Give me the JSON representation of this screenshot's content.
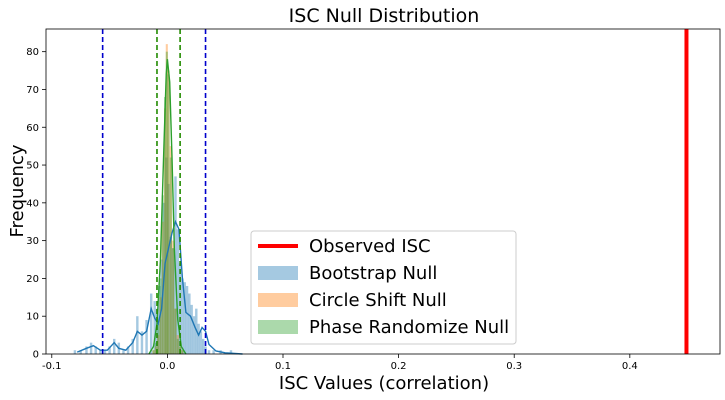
{
  "chart_data": {
    "type": "histogram",
    "title": "ISC Null Distribution",
    "xlabel": "ISC Values (correlation)",
    "ylabel": "Frequency",
    "xlim": [
      -0.105,
      0.478
    ],
    "ylim": [
      0,
      86
    ],
    "x_ticks": [
      -0.1,
      0.0,
      0.1,
      0.2,
      0.3,
      0.4
    ],
    "x_tick_labels": [
      "-0.1",
      "0.0",
      "0.1",
      "0.2",
      "0.3",
      "0.4"
    ],
    "y_ticks": [
      0,
      10,
      20,
      30,
      40,
      50,
      60,
      70,
      80
    ],
    "y_tick_labels": [
      "0",
      "10",
      "20",
      "30",
      "40",
      "50",
      "60",
      "70",
      "80"
    ],
    "grid": false,
    "legend_position": "lower-right",
    "observed": {
      "name": "Observed ISC",
      "x": 0.449,
      "color": "#ff0000"
    },
    "series": [
      {
        "name": "Bootstrap Null",
        "color": "#1f77b4",
        "bin_width": 0.0021,
        "bins": [
          [
            -0.08,
            1
          ],
          [
            -0.075,
            1
          ],
          [
            -0.07,
            2
          ],
          [
            -0.066,
            3
          ],
          [
            -0.062,
            2
          ],
          [
            -0.058,
            1
          ],
          [
            -0.054,
            1
          ],
          [
            -0.05,
            2
          ],
          [
            -0.046,
            4
          ],
          [
            -0.042,
            3
          ],
          [
            -0.038,
            1
          ],
          [
            -0.034,
            2
          ],
          [
            -0.03,
            4
          ],
          [
            -0.026,
            10
          ],
          [
            -0.022,
            6
          ],
          [
            -0.018,
            9
          ],
          [
            -0.014,
            16
          ],
          [
            -0.011,
            14
          ],
          [
            -0.009,
            12
          ],
          [
            -0.007,
            18
          ],
          [
            -0.005,
            25
          ],
          [
            -0.003,
            40
          ],
          [
            -0.001,
            52
          ],
          [
            0.001,
            45
          ],
          [
            0.003,
            31
          ],
          [
            0.005,
            28
          ],
          [
            0.007,
            47
          ],
          [
            0.009,
            33
          ],
          [
            0.011,
            24
          ],
          [
            0.013,
            20
          ],
          [
            0.015,
            19
          ],
          [
            0.017,
            18
          ],
          [
            0.019,
            16
          ],
          [
            0.021,
            13
          ],
          [
            0.023,
            10
          ],
          [
            0.025,
            12
          ],
          [
            0.027,
            8
          ],
          [
            0.029,
            6
          ],
          [
            0.031,
            4
          ],
          [
            0.033,
            2
          ],
          [
            0.036,
            1
          ],
          [
            0.04,
            1
          ],
          [
            0.046,
            1
          ],
          [
            0.055,
            1
          ]
        ],
        "kde": [
          [
            -0.078,
            0.5
          ],
          [
            -0.07,
            1.5
          ],
          [
            -0.064,
            2.2
          ],
          [
            -0.058,
            1.0
          ],
          [
            -0.052,
            1.0
          ],
          [
            -0.046,
            3.0
          ],
          [
            -0.042,
            1.5
          ],
          [
            -0.036,
            1.0
          ],
          [
            -0.03,
            3.0
          ],
          [
            -0.026,
            6.0
          ],
          [
            -0.022,
            5.0
          ],
          [
            -0.018,
            6.0
          ],
          [
            -0.014,
            12.0
          ],
          [
            -0.011,
            9.5
          ],
          [
            -0.008,
            8.0
          ],
          [
            -0.005,
            12.0
          ],
          [
            -0.002,
            24.0
          ],
          [
            0.001,
            28.0
          ],
          [
            0.004,
            32.0
          ],
          [
            0.007,
            35.0
          ],
          [
            0.01,
            33.0
          ],
          [
            0.013,
            20.0
          ],
          [
            0.016,
            11.0
          ],
          [
            0.02,
            10.0
          ],
          [
            0.024,
            7.0
          ],
          [
            0.027,
            5.0
          ],
          [
            0.03,
            7.0
          ],
          [
            0.033,
            6.0
          ],
          [
            0.036,
            2.5
          ],
          [
            0.042,
            0.8
          ],
          [
            0.05,
            0.3
          ],
          [
            0.065,
            0.0
          ]
        ],
        "ci_lines": [
          -0.056,
          0.033
        ]
      },
      {
        "name": "Circle Shift Null",
        "color": "#ff7f0e",
        "bin_width": 0.0018,
        "bins": [
          [
            -0.012,
            1
          ],
          [
            -0.01,
            2
          ],
          [
            -0.008,
            5
          ],
          [
            -0.006,
            15
          ],
          [
            -0.004,
            35
          ],
          [
            -0.002,
            65
          ],
          [
            -0.0005,
            82
          ],
          [
            0.001,
            75
          ],
          [
            0.003,
            55
          ],
          [
            0.005,
            30
          ],
          [
            0.007,
            12
          ],
          [
            0.009,
            5
          ],
          [
            0.011,
            2
          ],
          [
            0.013,
            1
          ]
        ]
      },
      {
        "name": "Phase Randomize Null",
        "color": "#2ca02c",
        "bin_width": 0.0018,
        "bins": [
          [
            -0.012,
            1
          ],
          [
            -0.01,
            3
          ],
          [
            -0.008,
            8
          ],
          [
            -0.006,
            20
          ],
          [
            -0.004,
            42
          ],
          [
            -0.002,
            68
          ],
          [
            -0.0005,
            80
          ],
          [
            0.001,
            74
          ],
          [
            0.003,
            52
          ],
          [
            0.005,
            28
          ],
          [
            0.007,
            12
          ],
          [
            0.009,
            4
          ],
          [
            0.011,
            2
          ],
          [
            0.013,
            1
          ]
        ],
        "kde": [
          [
            -0.016,
            0.0
          ],
          [
            -0.012,
            2.0
          ],
          [
            -0.009,
            8.0
          ],
          [
            -0.006,
            25.0
          ],
          [
            -0.003,
            55.0
          ],
          [
            -0.001,
            74.0
          ],
          [
            0.0,
            78.0
          ],
          [
            0.002,
            72.0
          ],
          [
            0.004,
            52.0
          ],
          [
            0.006,
            28.0
          ],
          [
            0.009,
            9.0
          ],
          [
            0.012,
            2.0
          ],
          [
            0.016,
            0.0
          ]
        ],
        "ci_lines": [
          -0.009,
          0.011
        ]
      }
    ]
  }
}
